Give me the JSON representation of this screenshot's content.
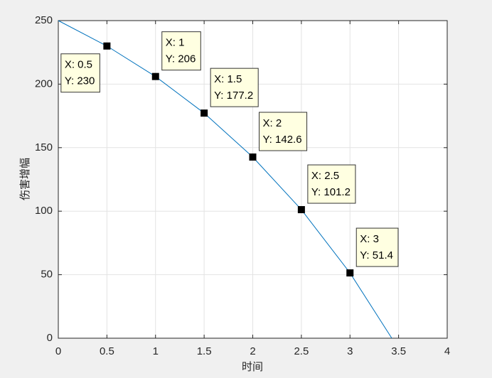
{
  "chart_data": {
    "type": "line",
    "xlabel": "时间",
    "ylabel": "伤害增幅",
    "x": [
      0,
      0.5,
      1,
      1.5,
      2,
      2.5,
      3,
      3.43
    ],
    "series": [
      {
        "color": "#0072bd",
        "values": [
          250,
          230,
          206,
          177.2,
          142.6,
          101.2,
          51.4,
          0
        ],
        "x_labels": [
          null,
          "X: 0.5",
          "X: 1",
          "X: 1.5",
          "X: 2",
          "X: 2.5",
          "X: 3",
          null
        ],
        "value_labels": [
          null,
          "Y: 230",
          "Y: 206",
          "Y: 177.2",
          "Y: 142.6",
          "Y: 101.2",
          "Y: 51.4",
          null
        ]
      }
    ],
    "xlim": [
      0,
      4
    ],
    "xticks": [
      0,
      0.5,
      1,
      1.5,
      2,
      2.5,
      3,
      3.5,
      4
    ],
    "ylim": [
      0,
      250
    ],
    "yticks": [
      0,
      50,
      100,
      150,
      200,
      250
    ],
    "grid": true
  }
}
